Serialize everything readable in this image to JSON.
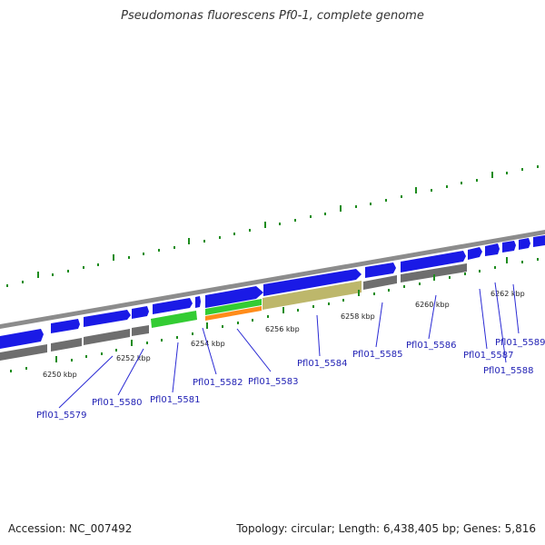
{
  "title": "Pseudomonas fluorescens Pf0-1, complete genome",
  "footer": {
    "accession": "Accession: NC_007492",
    "meta": "Topology: circular; Length: 6,438,405 bp; Genes: 5,816"
  },
  "kbp_labels": [
    "6250 kbp",
    "6252 kbp",
    "6254 kbp",
    "6256 kbp",
    "6258 kbp",
    "6260 kbp",
    "6262 kbp"
  ],
  "gene_labels": [
    "Pfl01_5579",
    "Pfl01_5580",
    "Pfl01_5581",
    "Pfl01_5582",
    "Pfl01_5583",
    "Pfl01_5584",
    "Pfl01_5585",
    "Pfl01_5586",
    "Pfl01_5587",
    "Pfl01_5588",
    "Pfl01_5589"
  ],
  "colors": {
    "cds": "#1a1ae6",
    "gene": "#6e6e6e",
    "rna_green": "#33cc33",
    "rna_orange": "#ff8c1a",
    "olive": "#bdb76b",
    "backbone": "#8c8c8c",
    "tick": "#1e8c1e",
    "label": "#1f1fb4"
  }
}
